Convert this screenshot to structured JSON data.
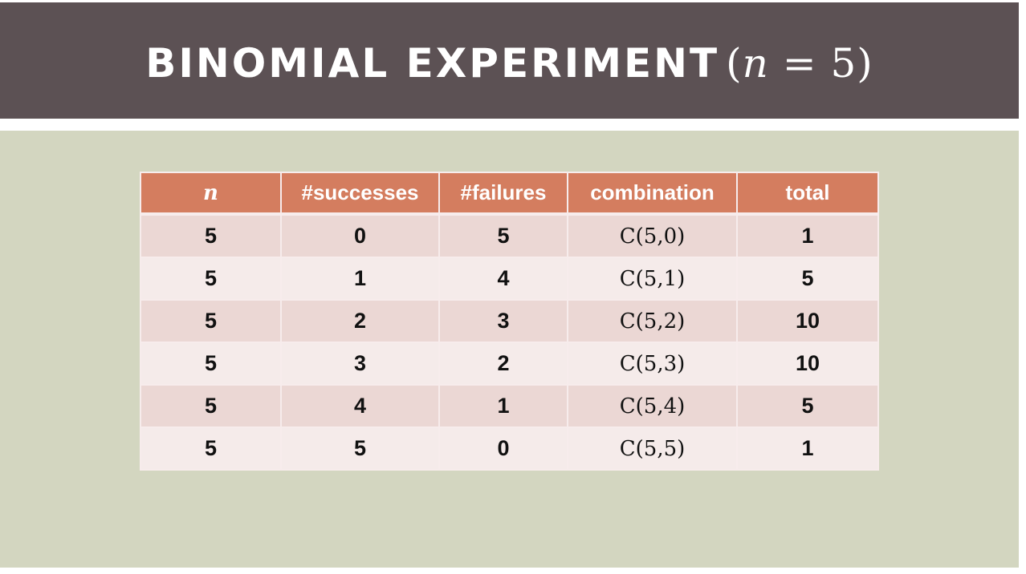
{
  "slide": {
    "title_text": "BINOMIAL EXPERIMENT",
    "title_math_open": "(",
    "title_math_var": "n",
    "title_math_rest": " = 5)"
  },
  "table": {
    "headers": [
      "n",
      "#successes",
      "#failures",
      "combination",
      "total"
    ],
    "rows": [
      [
        "5",
        "0",
        "5",
        "C(5,0)",
        "1"
      ],
      [
        "5",
        "1",
        "4",
        "C(5,1)",
        "5"
      ],
      [
        "5",
        "2",
        "3",
        "C(5,2)",
        "10"
      ],
      [
        "5",
        "3",
        "2",
        "C(5,3)",
        "10"
      ],
      [
        "5",
        "4",
        "1",
        "C(5,4)",
        "5"
      ],
      [
        "5",
        "5",
        "0",
        "C(5,5)",
        "1"
      ]
    ]
  },
  "colors": {
    "title_bar": "#5c5154",
    "content_bg": "#d3d6c0",
    "header_bg": "#d47d5f",
    "row_odd": "#ebd7d4",
    "row_even": "#f5ebea"
  }
}
